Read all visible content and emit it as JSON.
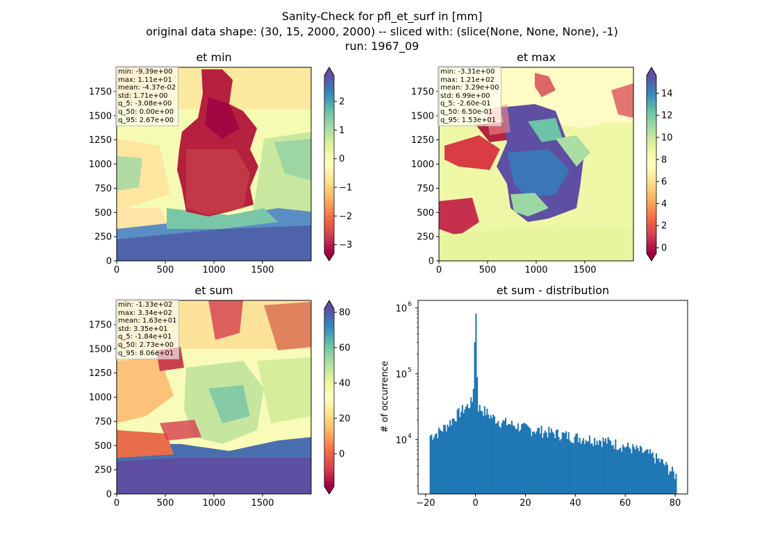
{
  "suptitle": {
    "line1": "Sanity-Check for pfl_et_surf in [mm]",
    "line2": "original data shape: (30, 15, 2000, 2000) -- sliced with: (slice(None, None, None), -1)",
    "line3": "run: 1967_09"
  },
  "chart_data": [
    {
      "type": "heatmap",
      "title": "et min",
      "xlim": [
        0,
        2000
      ],
      "ylim": [
        0,
        2000
      ],
      "xticks": [
        "0",
        "500",
        "1000",
        "1500"
      ],
      "yticks": [
        "0",
        "250",
        "500",
        "750",
        "1000",
        "1250",
        "1500",
        "1750"
      ],
      "colormap": "Spectral",
      "colorbar_range": [
        -3.3,
        2.9
      ],
      "colorbar_ticks": [
        "2",
        "1",
        "0",
        "−1",
        "−2",
        "−3"
      ],
      "stats": [
        "min: -9.39e+00",
        "max: 1.11e+01",
        "mean: -4.37e-02",
        "std: 1.71e+00",
        "q_5: -3.08e+00",
        "q_50: 0.00e+00",
        "q_95: 2.67e+00"
      ]
    },
    {
      "type": "heatmap",
      "title": "et max",
      "xlim": [
        0,
        2000
      ],
      "ylim": [
        0,
        2000
      ],
      "xticks": [
        "0",
        "500",
        "1000",
        "1500"
      ],
      "yticks": [
        "0",
        "250",
        "500",
        "750",
        "1000",
        "1250",
        "1500",
        "1750"
      ],
      "colormap": "Spectral",
      "colorbar_range": [
        -0.5,
        15.6
      ],
      "colorbar_ticks": [
        "14",
        "12",
        "10",
        "8",
        "6",
        "4",
        "2",
        "0"
      ],
      "stats": [
        "min: -3.31e+00",
        "max: 1.21e+02",
        "mean: 3.29e+00",
        "std: 6.99e+00",
        "q_5: -2.60e-01",
        "q_50: 6.50e-01",
        "q_95: 1.53e+01"
      ]
    },
    {
      "type": "heatmap",
      "title": "et sum",
      "xlim": [
        0,
        2000
      ],
      "ylim": [
        0,
        2000
      ],
      "xticks": [
        "0",
        "500",
        "1000",
        "1500"
      ],
      "yticks": [
        "0",
        "250",
        "500",
        "750",
        "1000",
        "1250",
        "1500",
        "1750"
      ],
      "colormap": "Spectral",
      "colorbar_range": [
        -18.4,
        82
      ],
      "colorbar_ticks": [
        "80",
        "60",
        "40",
        "20",
        "0"
      ],
      "stats": [
        "min: -1.33e+02",
        "max: 3.34e+02",
        "mean: 1.63e+01",
        "std: 3.35e+01",
        "q_5: -1.84e+01",
        "q_50: 2.73e+00",
        "q_95: 8.06e+01"
      ]
    },
    {
      "type": "bar",
      "title": "et sum - distribution",
      "ylabel": "# of occurrence",
      "xlabel": "",
      "log_y": true,
      "xlim": [
        -23,
        85
      ],
      "ylim": [
        1500,
        1300000
      ],
      "xticks": [
        "−20",
        "0",
        "20",
        "40",
        "60",
        "80"
      ],
      "yticks": [
        "10^4",
        "10^5",
        "10^6"
      ],
      "color": "#1f77b4",
      "bins": [
        -18.4,
        80.6
      ],
      "values": [
        [
          -18.4,
          11500
        ],
        [
          -15,
          13000
        ],
        [
          -12,
          16000
        ],
        [
          -10,
          19000
        ],
        [
          -8,
          23000
        ],
        [
          -6,
          27000
        ],
        [
          -4,
          31000
        ],
        [
          -2,
          36000
        ],
        [
          -1,
          40000
        ],
        [
          0,
          820000
        ],
        [
          1,
          32000
        ],
        [
          2,
          30000
        ],
        [
          4,
          27000
        ],
        [
          6,
          23000
        ],
        [
          8,
          21000
        ],
        [
          10,
          19000
        ],
        [
          15,
          17000
        ],
        [
          20,
          15000
        ],
        [
          25,
          14000
        ],
        [
          30,
          13000
        ],
        [
          35,
          12000
        ],
        [
          40,
          11000
        ],
        [
          45,
          10500
        ],
        [
          50,
          10000
        ],
        [
          55,
          9000
        ],
        [
          60,
          8000
        ],
        [
          65,
          7000
        ],
        [
          70,
          6000
        ],
        [
          75,
          4500
        ],
        [
          78,
          3500
        ],
        [
          80.6,
          2800
        ]
      ]
    }
  ]
}
